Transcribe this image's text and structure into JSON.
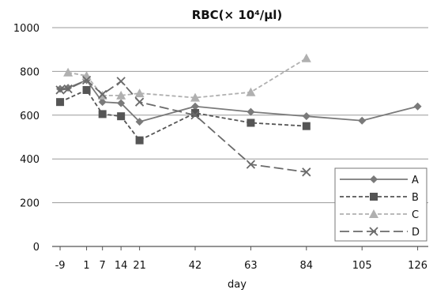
{
  "chart_data": {
    "type": "line",
    "title": "RBC(× 10⁴/µl)",
    "xlabel": "day",
    "ylabel": "",
    "xlim": [
      -12,
      130
    ],
    "ylim": [
      0,
      1000
    ],
    "xticks": [
      -9,
      1,
      7,
      14,
      21,
      42,
      63,
      84,
      105,
      126
    ],
    "yticks": [
      0,
      200,
      400,
      600,
      800,
      1000
    ],
    "grid": true,
    "legend_position": "bottom-right",
    "series": [
      {
        "name": "A",
        "color": "#7a7a7a",
        "dash": "solid",
        "marker": "diamond",
        "x": [
          -9,
          -6,
          1,
          7,
          14,
          21,
          42,
          63,
          84,
          105,
          126
        ],
        "y": [
          720,
          725,
          760,
          660,
          655,
          570,
          640,
          615,
          595,
          575,
          640
        ]
      },
      {
        "name": "B",
        "color": "#555555",
        "dash": "dash",
        "marker": "square",
        "x": [
          -9,
          1,
          7,
          14,
          21,
          42,
          63,
          84
        ],
        "y": [
          660,
          715,
          605,
          595,
          485,
          610,
          565,
          550
        ]
      },
      {
        "name": "C",
        "color": "#b0b0b0",
        "dash": "dash",
        "marker": "triangle",
        "x": [
          -6,
          1,
          7,
          14,
          21,
          42,
          63,
          84
        ],
        "y": [
          795,
          780,
          690,
          690,
          700,
          680,
          705,
          860
        ]
      },
      {
        "name": "D",
        "color": "#6a6a6a",
        "dash": "longdash",
        "marker": "x",
        "x": [
          -9,
          -6,
          1,
          7,
          14,
          21,
          42,
          63,
          84
        ],
        "y": [
          715,
          720,
          760,
          695,
          755,
          660,
          600,
          375,
          340
        ]
      }
    ]
  }
}
